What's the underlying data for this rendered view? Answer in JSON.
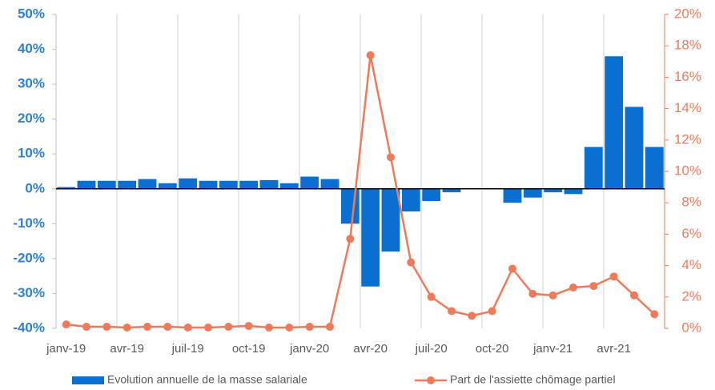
{
  "chart_data": {
    "type": "bar",
    "categories": [
      "janv-19",
      null,
      null,
      "avr-19",
      null,
      null,
      "juil-19",
      null,
      null,
      "oct-19",
      null,
      null,
      "janv-20",
      null,
      null,
      "avr-20",
      null,
      null,
      "juil-20",
      null,
      null,
      "oct-20",
      null,
      null,
      "janv-21",
      null,
      null,
      "avr-21",
      null,
      null
    ],
    "series": [
      {
        "name": "Evolution annuelle de la masse salariale",
        "color": "#0b6fd1",
        "type": "bar",
        "values": [
          0.5,
          2.3,
          2.3,
          2.3,
          2.8,
          1.6,
          3,
          2.3,
          2.3,
          2.3,
          2.5,
          1.6,
          3.5,
          2.8,
          -10,
          -28,
          -18,
          -6.5,
          -3.5,
          -1,
          0,
          0,
          -4,
          -2.5,
          -1,
          -1.5,
          12,
          38,
          23.5,
          12
        ]
      },
      {
        "name": "Part de l'assiette chômage partiel",
        "color": "#ee7a5a",
        "type": "line",
        "axis": "y2",
        "values": [
          0.25,
          0.1,
          0.1,
          0.05,
          0.1,
          0.1,
          0.05,
          0.05,
          0.1,
          0.15,
          0.05,
          0.05,
          0.1,
          0.1,
          5.7,
          17.4,
          10.9,
          4.2,
          2.0,
          1.1,
          0.8,
          1.1,
          3.8,
          2.2,
          2.1,
          2.6,
          2.7,
          3.3,
          2.1,
          0.9
        ]
      }
    ],
    "ylim": [
      -40,
      50
    ],
    "yticks": [
      {
        "value": -40,
        "label": "-40%"
      },
      {
        "value": -30,
        "label": "-30%"
      },
      {
        "value": -20,
        "label": "-20%"
      },
      {
        "value": -10,
        "label": "-10%"
      },
      {
        "value": 0,
        "label": "0%"
      },
      {
        "value": 10,
        "label": "10%"
      },
      {
        "value": 20,
        "label": "20%"
      },
      {
        "value": 30,
        "label": "30%"
      },
      {
        "value": 40,
        "label": "40%"
      },
      {
        "value": 50,
        "label": "50%"
      }
    ],
    "y2lim": [
      0,
      20
    ],
    "y2ticks": [
      {
        "value": 0,
        "label": "0%"
      },
      {
        "value": 2,
        "label": "2%"
      },
      {
        "value": 4,
        "label": "4%"
      },
      {
        "value": 6,
        "label": "6%"
      },
      {
        "value": 8,
        "label": "8%"
      },
      {
        "value": 10,
        "label": "10%"
      },
      {
        "value": 12,
        "label": "12%"
      },
      {
        "value": 14,
        "label": "14%"
      },
      {
        "value": 16,
        "label": "16%"
      },
      {
        "value": 18,
        "label": "18%"
      },
      {
        "value": 20,
        "label": "20%"
      }
    ],
    "grid": true
  }
}
